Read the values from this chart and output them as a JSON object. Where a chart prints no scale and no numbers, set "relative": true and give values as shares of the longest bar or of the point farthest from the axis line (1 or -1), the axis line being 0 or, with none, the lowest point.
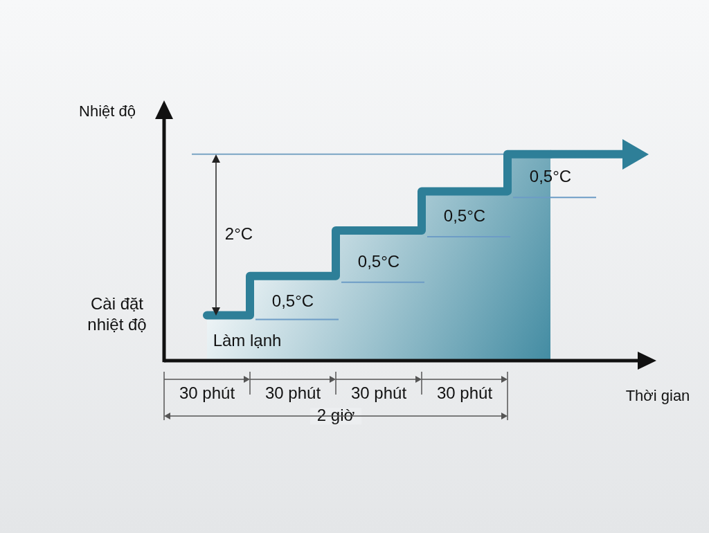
{
  "chart_data": {
    "type": "step",
    "relative": true,
    "xlabel": "Thời gian",
    "ylabel": "Nhiệt độ",
    "categories": [
      "30 phút",
      "30 phút",
      "30 phút",
      "30 phút",
      null
    ],
    "grid": false,
    "legend": false,
    "marker": "none",
    "line_style": "solid",
    "series": [
      {
        "color": "#2e7f98",
        "values": [
          0.22,
          0.41,
          0.63,
          0.82,
          1
        ]
      }
    ],
    "ref_lines": [
      {
        "axis": "y",
        "value": 1,
        "color": "#7aa4c4"
      },
      {
        "axis": "y",
        "value": 0.2,
        "color": "#6d9cc6"
      },
      {
        "axis": "y",
        "value": 0.38,
        "color": "#6d9cc6"
      },
      {
        "axis": "y",
        "value": 0.6,
        "color": "#6d9cc6"
      },
      {
        "axis": "y",
        "value": 0.79,
        "color": "#6d9cc6"
      }
    ],
    "annotations": [
      "0,5°C",
      "0,5°C",
      "0,5°C",
      "0,5°C",
      "2°C",
      "Làm lạnh",
      "2 giờ",
      "Cài đặt\nnhiệt độ"
    ]
  }
}
